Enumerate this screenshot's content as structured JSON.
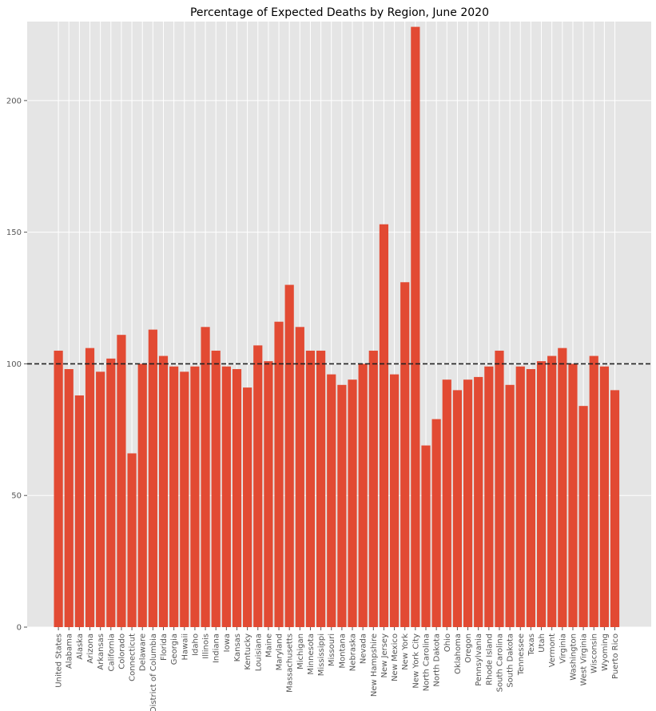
{
  "chart_data": {
    "type": "bar",
    "title": "Percentage of Expected Deaths by Region, June 2020",
    "xlabel": "",
    "ylabel": "",
    "ylim": [
      0,
      230
    ],
    "yticks": [
      0,
      50,
      100,
      150,
      200
    ],
    "grid": true,
    "reference_line": 100,
    "colors": {
      "bar": "#E24A33",
      "background": "#E5E5E5",
      "grid": "#FFFFFF",
      "reference_line": "#222222"
    },
    "categories": [
      "United States",
      "Alabama",
      "Alaska",
      "Arizona",
      "Arkansas",
      "California",
      "Colorado",
      "Connecticut",
      "Delaware",
      "District of Columbia",
      "Florida",
      "Georgia",
      "Hawaii",
      "Idaho",
      "Illinois",
      "Indiana",
      "Iowa",
      "Kansas",
      "Kentucky",
      "Louisiana",
      "Maine",
      "Maryland",
      "Massachusetts",
      "Michigan",
      "Minnesota",
      "Mississippi",
      "Missouri",
      "Montana",
      "Nebraska",
      "Nevada",
      "New Hampshire",
      "New Jersey",
      "New Mexico",
      "New York",
      "New York City",
      "North Carolina",
      "North Dakota",
      "Ohio",
      "Oklahoma",
      "Oregon",
      "Pennsylvania",
      "Rhode Island",
      "South Carolina",
      "South Dakota",
      "Tennessee",
      "Texas",
      "Utah",
      "Vermont",
      "Virginia",
      "Washington",
      "West Virginia",
      "Wisconsin",
      "Wyoming",
      "Puerto Rico"
    ],
    "values": [
      105,
      98,
      88,
      106,
      97,
      102,
      111,
      66,
      100,
      113,
      103,
      99,
      97,
      99,
      114,
      105,
      99,
      98,
      91,
      107,
      101,
      116,
      130,
      114,
      105,
      105,
      96,
      92,
      94,
      100,
      105,
      153,
      96,
      131,
      228,
      69,
      79,
      94,
      90,
      94,
      95,
      99,
      105,
      92,
      99,
      98,
      101,
      103,
      106,
      100,
      84,
      103,
      99,
      90
    ]
  }
}
